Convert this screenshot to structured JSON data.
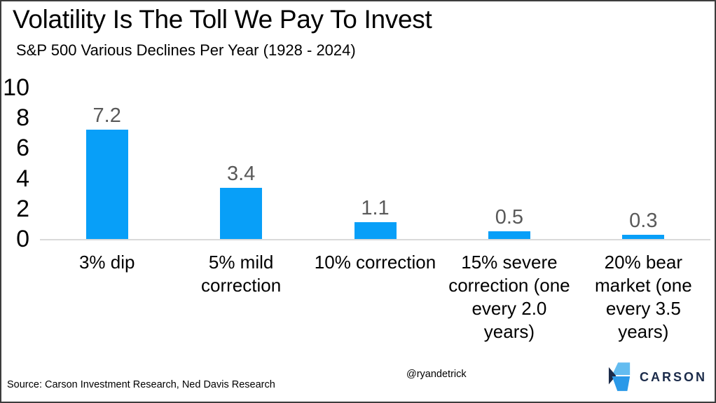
{
  "chart_data": {
    "type": "bar",
    "title": "Volatility Is The Toll We Pay To Invest",
    "subtitle": "S&P 500 Various Declines Per Year (1928 - 2024)",
    "categories": [
      "3% dip",
      "5% mild correction",
      "10% correction",
      "15% severe correction (one every 2.0 years)",
      "20% bear market (one every 3.5 years)"
    ],
    "category_display_lines": [
      [
        "3% dip"
      ],
      [
        "5% mild",
        "correction"
      ],
      [
        "10% correction"
      ],
      [
        "15% severe",
        "correction (one",
        "every 2.0",
        "years)"
      ],
      [
        "20% bear",
        "market (one",
        "every 3.5",
        "years)"
      ]
    ],
    "values": [
      7.2,
      3.4,
      1.1,
      0.5,
      0.3
    ],
    "data_labels": [
      "7.2",
      "3.4",
      "1.1",
      "0.5",
      "0.3"
    ],
    "xlabel": "",
    "ylabel": "",
    "ylim": [
      0,
      10
    ],
    "yticks": [
      "10",
      "8",
      "6",
      "4",
      "2",
      "0"
    ],
    "grid": false,
    "legend": "none",
    "bar_color": "#089ff8",
    "data_label_color": "#595959",
    "axis_line_color": "#d9d9d9"
  },
  "footer": {
    "source": "Source: Carson Investment Research, Ned Davis Research",
    "handle": "@ryandetrick",
    "logo_text": "CARSON",
    "logo_colors": {
      "light_blue": "#63bcf0",
      "navy": "#1b2b4a",
      "blue": "#2b99e8"
    }
  }
}
